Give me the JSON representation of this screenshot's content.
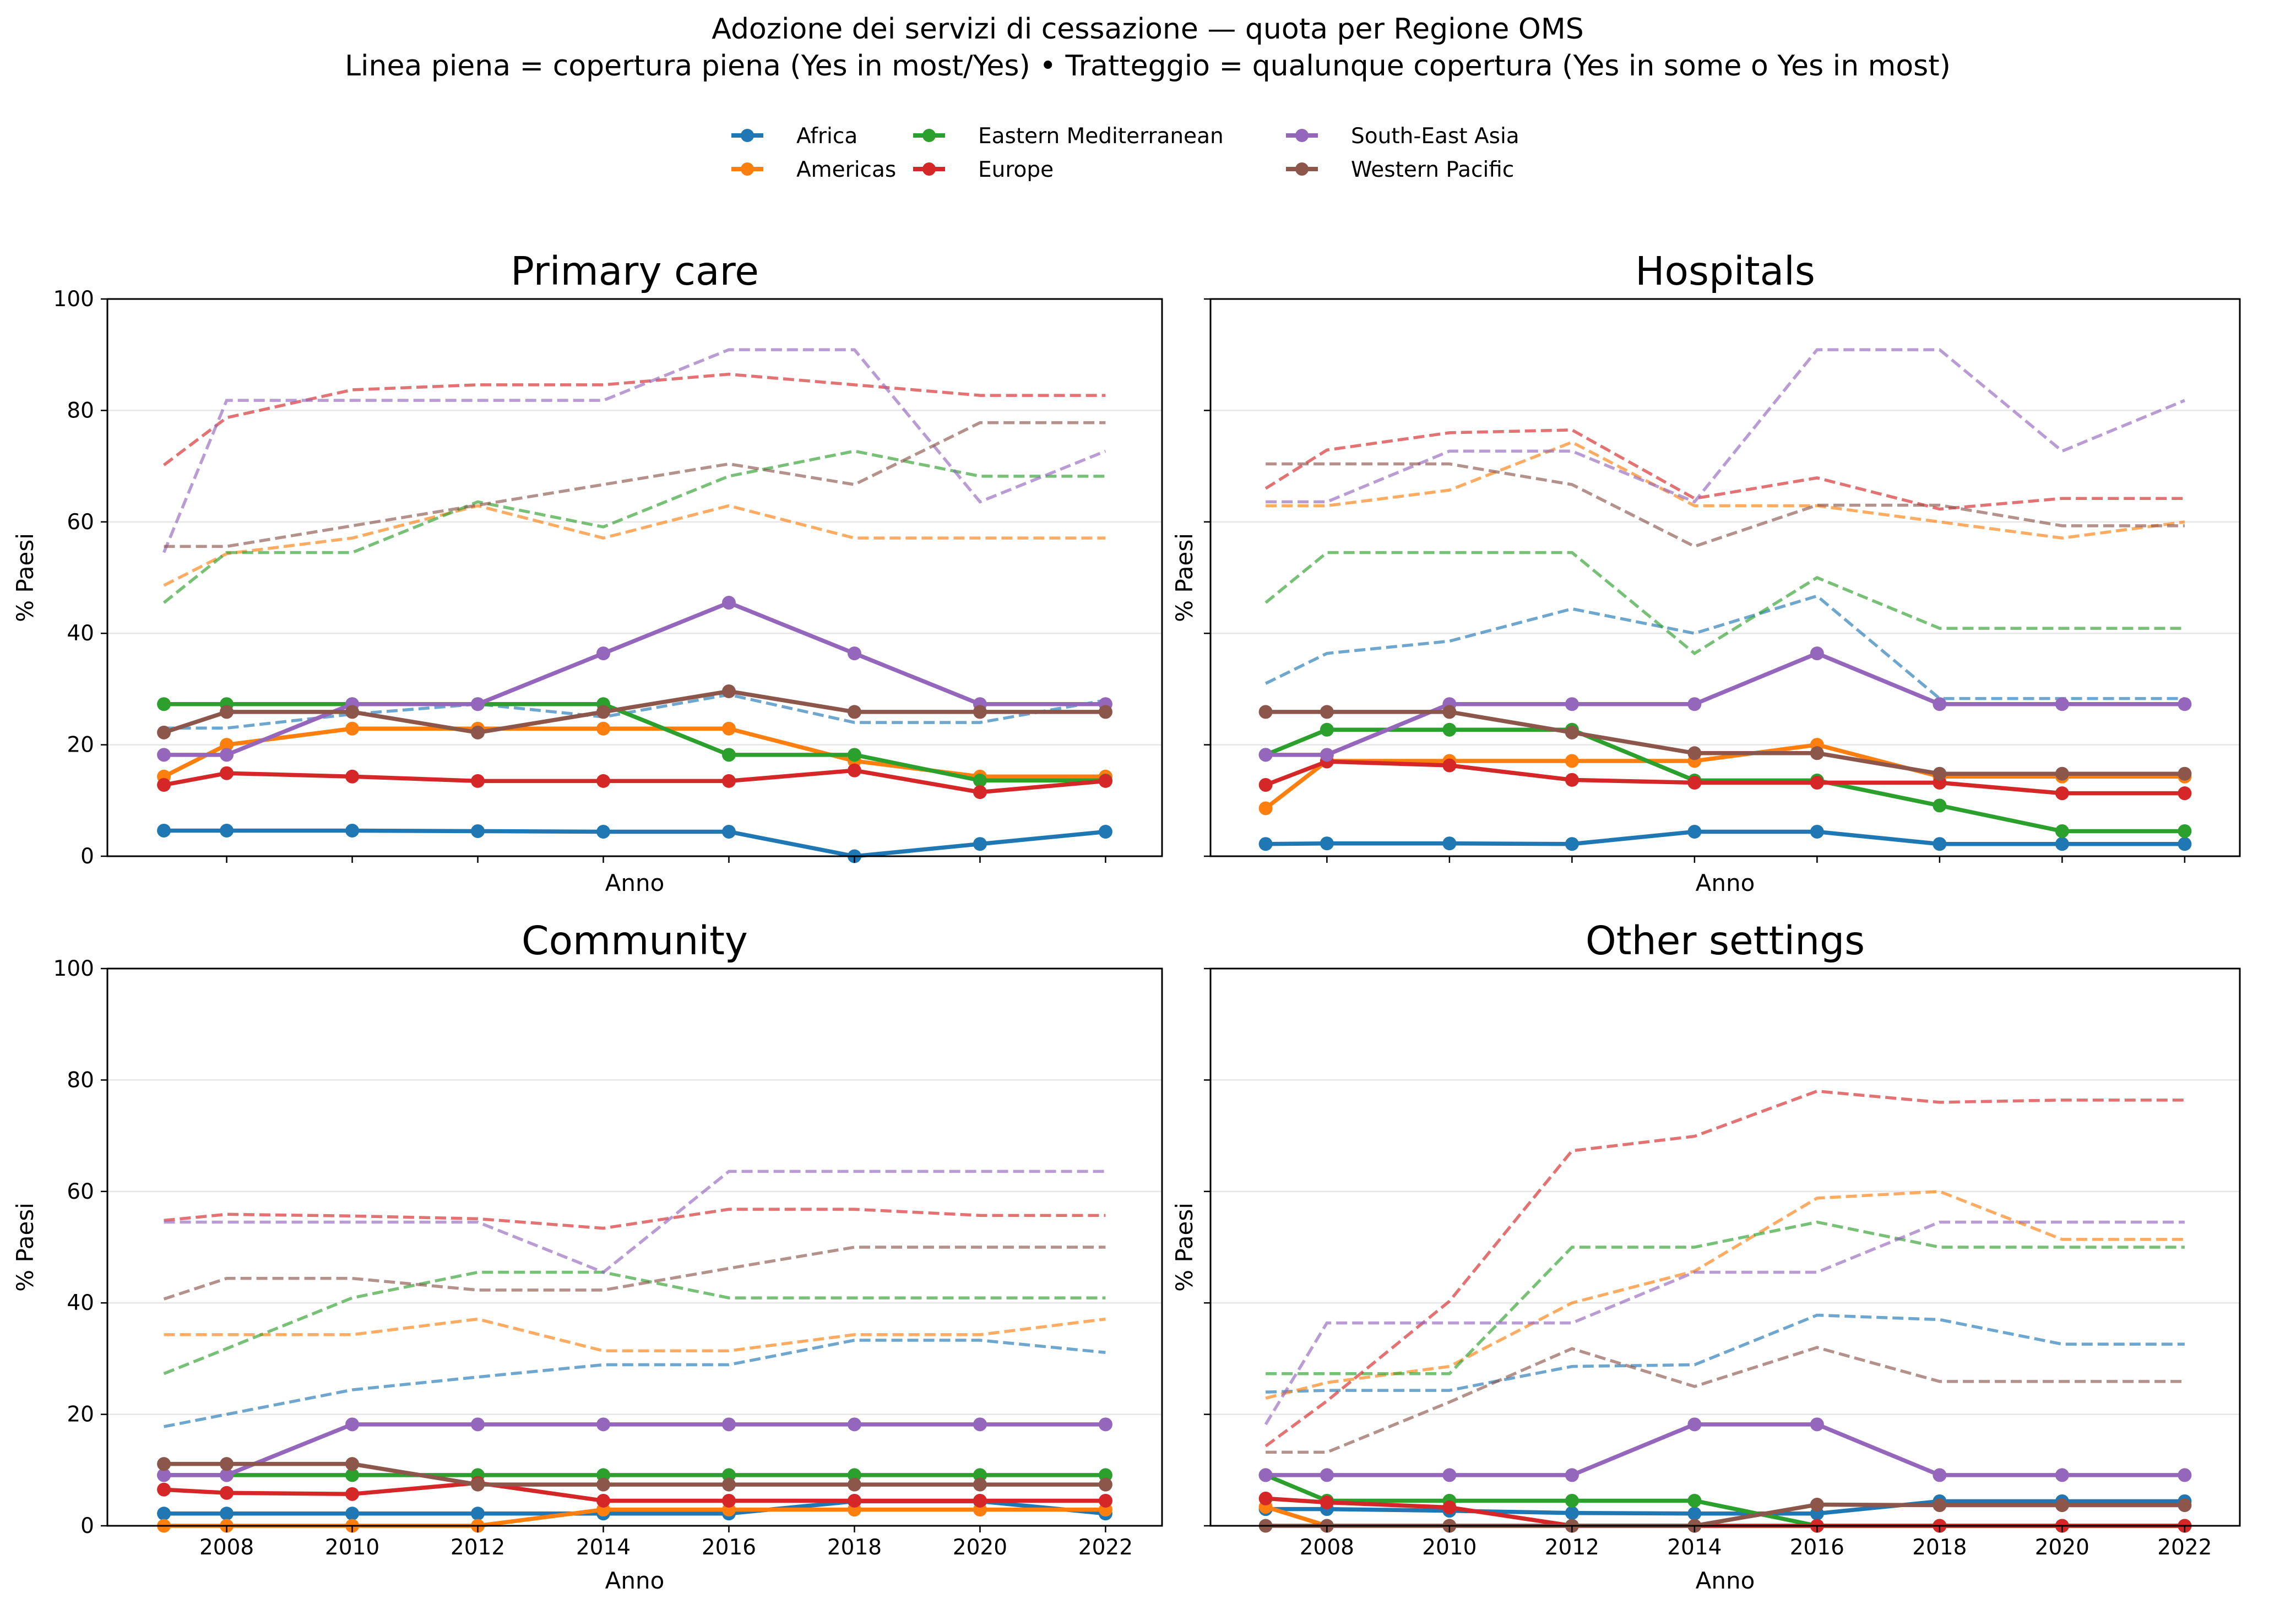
{
  "title_line1": "Adozione dei servizi di cessazione — quota per Regione OMS",
  "title_line2": "Linea piena = copertura piena (Yes in most/Yes) • Tratteggio = qualunque copertura (Yes in some o Yes in most)",
  "legend": [
    {
      "name": "Africa",
      "color": "#1f77b4"
    },
    {
      "name": "Americas",
      "color": "#ff7f0e"
    },
    {
      "name": "Eastern Mediterranean",
      "color": "#2ca02c"
    },
    {
      "name": "Europe",
      "color": "#d62728"
    },
    {
      "name": "South-East Asia",
      "color": "#9467bd"
    },
    {
      "name": "Western Pacific",
      "color": "#8c564b"
    }
  ],
  "chart_data": [
    {
      "type": "line",
      "title": "Primary care",
      "xlabel": "Anno",
      "ylabel": "% Paesi",
      "ylim": [
        0,
        100
      ],
      "xlim": [
        2006.1,
        2022.9
      ],
      "x": [
        2007,
        2008,
        2010,
        2012,
        2014,
        2016,
        2018,
        2020,
        2022
      ],
      "show_xticklabels": false,
      "series": [
        {
          "name": "Africa",
          "full": [
            4.6,
            4.6,
            4.6,
            4.5,
            4.4,
            4.4,
            0,
            2.2,
            4.4
          ],
          "any": [
            23,
            23,
            25.5,
            27.3,
            25,
            29,
            24,
            24,
            28
          ]
        },
        {
          "name": "Americas",
          "full": [
            14.3,
            20,
            22.9,
            22.9,
            22.9,
            22.9,
            17.1,
            14.3,
            14.3
          ],
          "any": [
            48.6,
            54.3,
            57.1,
            62.9,
            57.1,
            62.9,
            57.1,
            57.1,
            57.1
          ]
        },
        {
          "name": "Eastern Mediterranean",
          "full": [
            27.3,
            27.3,
            27.3,
            27.3,
            27.3,
            18.2,
            18.2,
            13.6,
            13.6
          ],
          "any": [
            45.5,
            54.5,
            54.5,
            63.6,
            59.1,
            68.2,
            72.7,
            68.2,
            68.2
          ]
        },
        {
          "name": "Europe",
          "full": [
            12.8,
            14.9,
            14.3,
            13.5,
            13.5,
            13.5,
            15.4,
            11.5,
            13.5
          ],
          "any": [
            70.2,
            78.7,
            83.7,
            84.6,
            84.6,
            86.5,
            84.6,
            82.7,
            82.7
          ]
        },
        {
          "name": "South-East Asia",
          "full": [
            18.2,
            18.2,
            27.3,
            27.3,
            36.4,
            45.5,
            36.4,
            27.3,
            27.3
          ],
          "any": [
            54.5,
            81.8,
            81.8,
            81.8,
            81.8,
            90.9,
            90.9,
            63.6,
            72.7
          ]
        },
        {
          "name": "Western Pacific",
          "full": [
            22.2,
            25.9,
            25.9,
            22.2,
            25.9,
            29.6,
            25.9,
            25.9,
            25.9
          ],
          "any": [
            55.6,
            55.6,
            59.3,
            63,
            66.7,
            70.4,
            66.7,
            77.8,
            77.8
          ]
        }
      ]
    },
    {
      "type": "line",
      "title": "Hospitals",
      "xlabel": "Anno",
      "ylabel": "% Paesi",
      "ylim": [
        0,
        100
      ],
      "xlim": [
        2006.1,
        2022.9
      ],
      "x": [
        2007,
        2008,
        2010,
        2012,
        2014,
        2016,
        2018,
        2020,
        2022
      ],
      "show_xticklabels": false,
      "series": [
        {
          "name": "Africa",
          "full": [
            2.2,
            2.3,
            2.3,
            2.2,
            4.4,
            4.4,
            2.2,
            2.2,
            2.2
          ],
          "any": [
            31,
            36.4,
            38.6,
            44.4,
            40,
            46.7,
            28.3,
            28.3,
            28.3
          ]
        },
        {
          "name": "Americas",
          "full": [
            8.6,
            17.1,
            17.1,
            17.1,
            17.1,
            20,
            14.3,
            14.3,
            14.3
          ],
          "any": [
            62.9,
            62.9,
            65.7,
            74.3,
            62.9,
            62.9,
            60,
            57.1,
            60
          ]
        },
        {
          "name": "Eastern Mediterranean",
          "full": [
            18.2,
            22.7,
            22.7,
            22.7,
            13.6,
            13.6,
            9.1,
            4.5,
            4.5
          ],
          "any": [
            45.5,
            54.5,
            54.5,
            54.5,
            36.4,
            50,
            40.9,
            40.9,
            40.9
          ]
        },
        {
          "name": "Europe",
          "full": [
            12.8,
            17,
            16.3,
            13.7,
            13.2,
            13.2,
            13.2,
            11.3,
            11.3
          ],
          "any": [
            66,
            72.9,
            76,
            76.5,
            64.2,
            67.9,
            62.3,
            64.2,
            64.2
          ]
        },
        {
          "name": "South-East Asia",
          "full": [
            18.2,
            18.2,
            27.3,
            27.3,
            27.3,
            36.4,
            27.3,
            27.3,
            27.3
          ],
          "any": [
            63.6,
            63.6,
            72.7,
            72.7,
            63.6,
            90.9,
            90.9,
            72.7,
            81.8
          ]
        },
        {
          "name": "Western Pacific",
          "full": [
            25.9,
            25.9,
            25.9,
            22.2,
            18.5,
            18.5,
            14.8,
            14.8,
            14.8
          ],
          "any": [
            70.4,
            70.4,
            70.4,
            66.7,
            55.6,
            63,
            63,
            59.3,
            59.3
          ]
        }
      ]
    },
    {
      "type": "line",
      "title": "Community",
      "xlabel": "Anno",
      "ylabel": "% Paesi",
      "ylim": [
        0,
        100
      ],
      "xlim": [
        2006.1,
        2022.9
      ],
      "x": [
        2007,
        2008,
        2010,
        2012,
        2014,
        2016,
        2018,
        2020,
        2022
      ],
      "show_xticklabels": true,
      "series": [
        {
          "name": "Africa",
          "full": [
            2.2,
            2.2,
            2.2,
            2.2,
            2.2,
            2.2,
            4.4,
            4.4,
            2.2
          ],
          "any": [
            17.8,
            20,
            24.4,
            26.7,
            28.9,
            28.9,
            33.3,
            33.3,
            31.1
          ]
        },
        {
          "name": "Americas",
          "full": [
            0,
            0,
            0,
            0,
            2.9,
            2.9,
            2.9,
            2.9,
            2.9
          ],
          "any": [
            34.3,
            34.3,
            34.3,
            37.1,
            31.4,
            31.4,
            34.3,
            34.3,
            37.1
          ]
        },
        {
          "name": "Eastern Mediterranean",
          "full": [
            9.1,
            9.1,
            9.1,
            9.1,
            9.1,
            9.1,
            9.1,
            9.1,
            9.1
          ],
          "any": [
            27.3,
            31.8,
            40.9,
            45.5,
            45.5,
            40.9,
            40.9,
            40.9,
            40.9
          ]
        },
        {
          "name": "Europe",
          "full": [
            6.5,
            5.9,
            5.7,
            7.7,
            4.5,
            4.5,
            4.5,
            4.5,
            4.5
          ],
          "any": [
            54.8,
            55.9,
            55.6,
            55.1,
            53.4,
            56.8,
            56.8,
            55.7,
            55.7
          ]
        },
        {
          "name": "South-East Asia",
          "full": [
            9.1,
            9.1,
            18.2,
            18.2,
            18.2,
            18.2,
            18.2,
            18.2,
            18.2
          ],
          "any": [
            54.5,
            54.5,
            54.5,
            54.5,
            45.5,
            63.6,
            63.6,
            63.6,
            63.6
          ]
        },
        {
          "name": "Western Pacific",
          "full": [
            11.1,
            11.1,
            11.1,
            7.4,
            7.4,
            7.4,
            7.4,
            7.4,
            7.4
          ],
          "any": [
            40.7,
            44.4,
            44.4,
            42.3,
            42.3,
            46.2,
            50,
            50,
            50
          ]
        }
      ]
    },
    {
      "type": "line",
      "title": "Other settings",
      "xlabel": "Anno",
      "ylabel": "% Paesi",
      "ylim": [
        0,
        100
      ],
      "xlim": [
        2006.1,
        2022.9
      ],
      "x": [
        2007,
        2008,
        2010,
        2012,
        2014,
        2016,
        2018,
        2020,
        2022
      ],
      "show_xticklabels": true,
      "series": [
        {
          "name": "Africa",
          "full": [
            3,
            3,
            2.7,
            2.3,
            2.2,
            2.2,
            4.4,
            4.4,
            4.4
          ],
          "any": [
            24,
            24.3,
            24.3,
            28.6,
            28.9,
            37.8,
            37,
            32.6,
            32.6
          ]
        },
        {
          "name": "Americas",
          "full": [
            3.4,
            0,
            0,
            0,
            0,
            0,
            0,
            0,
            0
          ],
          "any": [
            22.9,
            25.7,
            28.6,
            40,
            45.7,
            58.8,
            60,
            51.4,
            51.4
          ]
        },
        {
          "name": "Eastern Mediterranean",
          "full": [
            9.1,
            4.5,
            4.5,
            4.5,
            4.5,
            0,
            0,
            0,
            0
          ],
          "any": [
            27.3,
            27.3,
            27.3,
            50,
            50,
            54.5,
            50,
            50,
            50
          ]
        },
        {
          "name": "Europe",
          "full": [
            4.9,
            4.2,
            3.3,
            0,
            0,
            0,
            0,
            0,
            0
          ],
          "any": [
            14.3,
            22.4,
            40.3,
            67.3,
            69.9,
            78,
            76,
            76.4,
            76.4
          ]
        },
        {
          "name": "South-East Asia",
          "full": [
            9.1,
            9.1,
            9.1,
            9.1,
            18.2,
            18.2,
            9.1,
            9.1,
            9.1
          ],
          "any": [
            18.2,
            36.4,
            36.4,
            36.4,
            45.5,
            45.5,
            54.5,
            54.5,
            54.5
          ]
        },
        {
          "name": "Western Pacific",
          "full": [
            0,
            0,
            0,
            0,
            0,
            3.8,
            3.7,
            3.7,
            3.7
          ],
          "any": [
            13.2,
            13.2,
            22.2,
            31.8,
            25,
            32,
            25.9,
            25.9,
            25.9
          ]
        }
      ]
    }
  ]
}
